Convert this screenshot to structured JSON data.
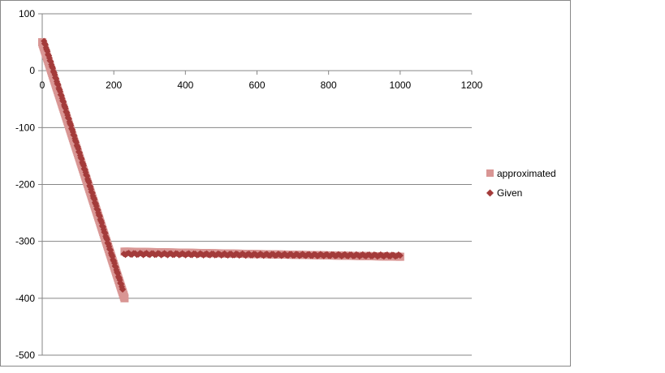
{
  "chart_data": {
    "type": "scatter",
    "xlim": [
      0,
      1200
    ],
    "ylim": [
      -500,
      100
    ],
    "x_ticks": [
      0,
      200,
      400,
      600,
      800,
      1000,
      1200
    ],
    "y_ticks": [
      100,
      0,
      -100,
      -200,
      -300,
      -400,
      -500
    ],
    "x_tick_labels": [
      "0",
      "200",
      "400",
      "600",
      "800",
      "1000",
      "1200"
    ],
    "y_tick_labels": [
      "100",
      "0",
      "-100",
      "-200",
      "-300",
      "-400",
      "-500"
    ],
    "grid": "horizontal",
    "legend_position": "right",
    "series": [
      {
        "name": "approximated",
        "marker": "square",
        "color": "#d99694",
        "segments": [
          {
            "x": [
              0,
              230
            ],
            "y": [
              50,
              -400
            ]
          },
          {
            "x": [
              230,
              1000
            ],
            "y": [
              -318,
              -327
            ]
          }
        ]
      },
      {
        "name": "Given",
        "marker": "diamond",
        "color": "#a33b3a",
        "segments": [
          {
            "x": [
              5,
              225
            ],
            "y": [
              52,
              -385
            ]
          },
          {
            "x": [
              228,
              1000
            ],
            "y": [
              -322,
              -325
            ]
          }
        ]
      }
    ]
  }
}
